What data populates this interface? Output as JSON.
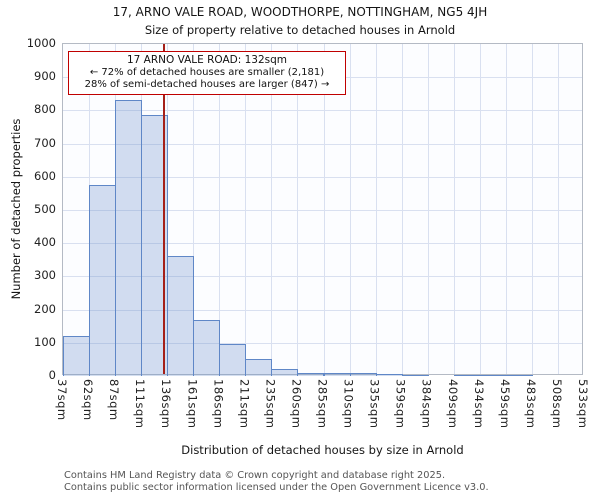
{
  "title": "17, ARNO VALE ROAD, WOODTHORPE, NOTTINGHAM, NG5 4JH",
  "subtitle": "Size of property relative to detached houses in Arnold",
  "annotation": {
    "line1": "17 ARNO VALE ROAD: 132sqm",
    "line2": "← 72% of detached houses are smaller (2,181)",
    "line3": "28% of semi-detached houses are larger (847) →"
  },
  "footer": {
    "line1": "Contains HM Land Registry data © Crown copyright and database right 2025.",
    "line2": "Contains public sector information licensed under the Open Government Licence v3.0."
  },
  "chart_data": {
    "type": "bar",
    "title": "17, ARNO VALE ROAD, WOODTHORPE, NOTTINGHAM, NG5 4JH — Size of property relative to detached houses in Arnold",
    "categories": [
      "37sqm",
      "62sqm",
      "87sqm",
      "111sqm",
      "136sqm",
      "161sqm",
      "186sqm",
      "211sqm",
      "235sqm",
      "260sqm",
      "285sqm",
      "310sqm",
      "335sqm",
      "359sqm",
      "384sqm",
      "409sqm",
      "434sqm",
      "459sqm",
      "483sqm",
      "508sqm",
      "533sqm"
    ],
    "bin_edges": [
      37,
      62,
      87,
      111,
      136,
      161,
      186,
      211,
      235,
      260,
      285,
      310,
      335,
      359,
      384,
      409,
      434,
      459,
      483,
      508,
      533
    ],
    "values": [
      120,
      575,
      830,
      785,
      360,
      170,
      95,
      50,
      20,
      10,
      8,
      10,
      5,
      3,
      0,
      3,
      3,
      3,
      0,
      0
    ],
    "xlabel": "Distribution of detached houses by size in Arnold",
    "ylabel": "Number of detached properties",
    "ylim": [
      0,
      1000
    ],
    "ytick_step": 100,
    "marker_value": 132,
    "marker_color": "#a52019",
    "annotation_border": "#c00000",
    "bar_fill": "rgba(108,145,205,0.30)",
    "bar_border": "#5f87c7",
    "grid_color": "#d9e0f0",
    "grid": true,
    "legend": "none"
  }
}
